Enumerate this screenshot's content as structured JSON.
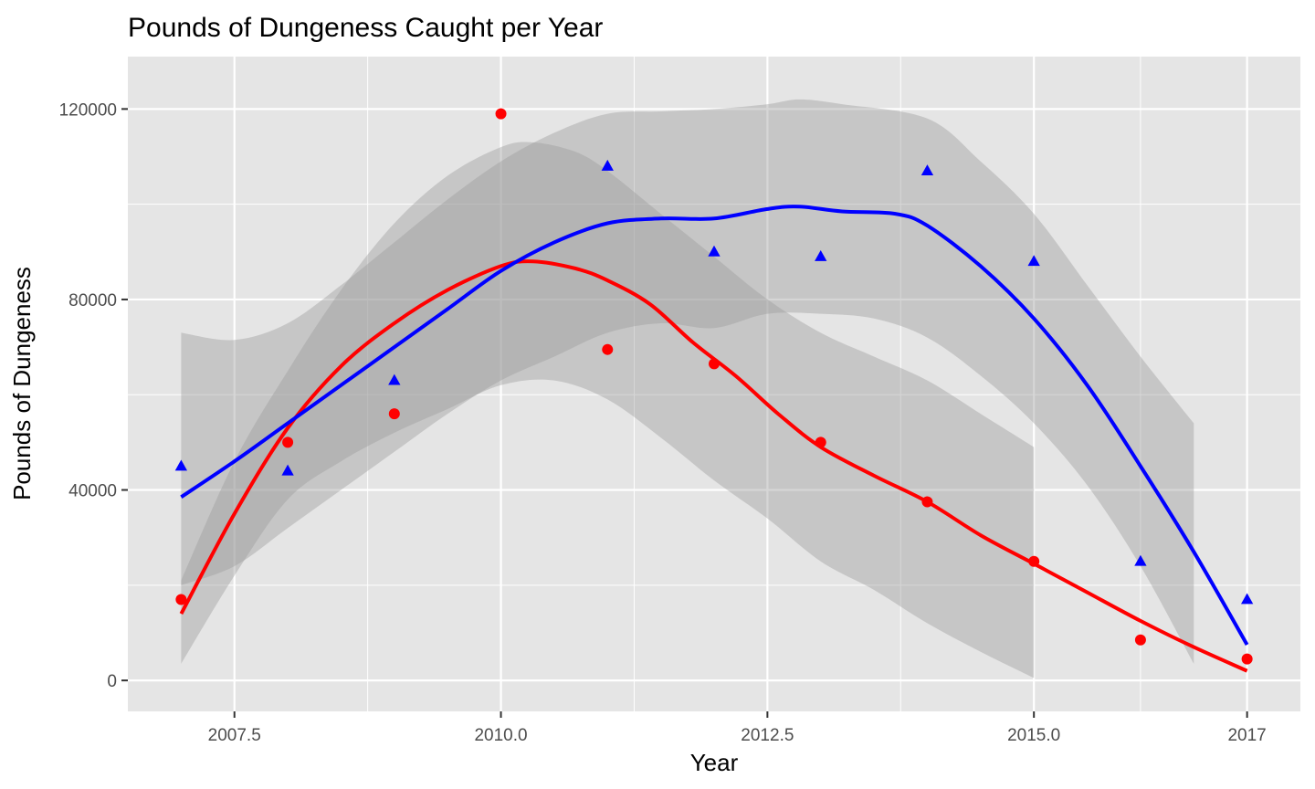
{
  "chart_data": {
    "type": "scatter",
    "title": "Pounds of Dungeness Caught per Year",
    "xlabel": "Year",
    "ylabel": "Pounds of Dungeness",
    "xlim": [
      2006.5,
      2017.5
    ],
    "ylim": [
      -6500,
      131000
    ],
    "x_ticks": [
      2007.5,
      2010.0,
      2012.5,
      2015.0,
      2017
    ],
    "x_tick_labels": [
      "2007.5",
      "2010.0",
      "2012.5",
      "2015.0",
      "2017"
    ],
    "y_ticks": [
      0,
      40000,
      80000,
      120000
    ],
    "y_tick_labels": [
      "0",
      "40000",
      "80000",
      "120000"
    ],
    "grid": true,
    "legend": "none",
    "colors": {
      "panel_bg": "#e5e5e5",
      "grid": "#ffffff",
      "ribbon": "#999999",
      "red": "#ff0000",
      "blue": "#0000ff",
      "tick": "#333333"
    },
    "series": [
      {
        "color": "#ff0000",
        "marker": "circle",
        "points": [
          {
            "x": 2007,
            "y": 17000
          },
          {
            "x": 2008,
            "y": 50000
          },
          {
            "x": 2009,
            "y": 56000
          },
          {
            "x": 2010,
            "y": 119000
          },
          {
            "x": 2011,
            "y": 69500
          },
          {
            "x": 2012,
            "y": 66500
          },
          {
            "x": 2013,
            "y": 50000
          },
          {
            "x": 2014,
            "y": 37500
          },
          {
            "x": 2015,
            "y": 25000
          },
          {
            "x": 2016,
            "y": 8500
          },
          {
            "x": 2017,
            "y": 4500
          }
        ],
        "smooth": [
          {
            "x": 2007.0,
            "y": 14000
          },
          {
            "x": 2007.5,
            "y": 35000
          },
          {
            "x": 2008.0,
            "y": 53000
          },
          {
            "x": 2008.5,
            "y": 66000
          },
          {
            "x": 2009.0,
            "y": 75000
          },
          {
            "x": 2009.5,
            "y": 82000
          },
          {
            "x": 2010.0,
            "y": 87000
          },
          {
            "x": 2010.3,
            "y": 88000
          },
          {
            "x": 2010.7,
            "y": 86500
          },
          {
            "x": 2011.0,
            "y": 84000
          },
          {
            "x": 2011.4,
            "y": 79000
          },
          {
            "x": 2011.8,
            "y": 71000
          },
          {
            "x": 2012.2,
            "y": 64000
          },
          {
            "x": 2012.6,
            "y": 56000
          },
          {
            "x": 2013.0,
            "y": 49000
          },
          {
            "x": 2013.5,
            "y": 43000
          },
          {
            "x": 2014.0,
            "y": 37500
          },
          {
            "x": 2014.5,
            "y": 30500
          },
          {
            "x": 2015.0,
            "y": 24500
          },
          {
            "x": 2015.5,
            "y": 18500
          },
          {
            "x": 2016.0,
            "y": 12500
          },
          {
            "x": 2016.5,
            "y": 7000
          },
          {
            "x": 2017.0,
            "y": 2000
          }
        ],
        "ribbon_upper": [
          {
            "x": 2007.0,
            "y": 21000
          },
          {
            "x": 2007.5,
            "y": 46000
          },
          {
            "x": 2008.0,
            "y": 65000
          },
          {
            "x": 2008.5,
            "y": 82000
          },
          {
            "x": 2009.0,
            "y": 96000
          },
          {
            "x": 2009.5,
            "y": 106000
          },
          {
            "x": 2010.0,
            "y": 112000
          },
          {
            "x": 2010.3,
            "y": 113000
          },
          {
            "x": 2010.7,
            "y": 111000
          },
          {
            "x": 2011.0,
            "y": 107000
          },
          {
            "x": 2011.5,
            "y": 98000
          },
          {
            "x": 2012.0,
            "y": 89000
          },
          {
            "x": 2012.5,
            "y": 80000
          },
          {
            "x": 2013.0,
            "y": 73000
          },
          {
            "x": 2013.5,
            "y": 68000
          },
          {
            "x": 2014.0,
            "y": 63000
          },
          {
            "x": 2014.5,
            "y": 56000
          },
          {
            "x": 2015.0,
            "y": 49000
          }
        ],
        "ribbon_lower": [
          {
            "x": 2007.0,
            "y": 3500
          },
          {
            "x": 2007.5,
            "y": 22000
          },
          {
            "x": 2008.0,
            "y": 38000
          },
          {
            "x": 2008.5,
            "y": 46000
          },
          {
            "x": 2009.0,
            "y": 52000
          },
          {
            "x": 2009.5,
            "y": 57000
          },
          {
            "x": 2010.0,
            "y": 62000
          },
          {
            "x": 2010.5,
            "y": 63000
          },
          {
            "x": 2011.0,
            "y": 59000
          },
          {
            "x": 2011.5,
            "y": 51000
          },
          {
            "x": 2012.0,
            "y": 42000
          },
          {
            "x": 2012.5,
            "y": 34000
          },
          {
            "x": 2013.0,
            "y": 25000
          },
          {
            "x": 2013.5,
            "y": 19000
          },
          {
            "x": 2014.0,
            "y": 12000
          },
          {
            "x": 2014.5,
            "y": 6000
          },
          {
            "x": 2015.0,
            "y": 500
          }
        ]
      },
      {
        "color": "#0000ff",
        "marker": "triangle",
        "points": [
          {
            "x": 2007,
            "y": 45000
          },
          {
            "x": 2008,
            "y": 44000
          },
          {
            "x": 2009,
            "y": 63000
          },
          {
            "x": 2011,
            "y": 108000
          },
          {
            "x": 2012,
            "y": 90000
          },
          {
            "x": 2013,
            "y": 89000
          },
          {
            "x": 2014,
            "y": 107000
          },
          {
            "x": 2015,
            "y": 88000
          },
          {
            "x": 2016,
            "y": 25000
          },
          {
            "x": 2017,
            "y": 17000
          }
        ],
        "smooth": [
          {
            "x": 2007.0,
            "y": 38500
          },
          {
            "x": 2007.5,
            "y": 46000
          },
          {
            "x": 2008.0,
            "y": 54000
          },
          {
            "x": 2008.5,
            "y": 62000
          },
          {
            "x": 2009.0,
            "y": 70000
          },
          {
            "x": 2009.5,
            "y": 78000
          },
          {
            "x": 2010.0,
            "y": 86000
          },
          {
            "x": 2010.5,
            "y": 92000
          },
          {
            "x": 2011.0,
            "y": 96000
          },
          {
            "x": 2011.5,
            "y": 97000
          },
          {
            "x": 2012.0,
            "y": 97000
          },
          {
            "x": 2012.5,
            "y": 99000
          },
          {
            "x": 2012.8,
            "y": 99500
          },
          {
            "x": 2013.2,
            "y": 98500
          },
          {
            "x": 2013.7,
            "y": 98000
          },
          {
            "x": 2014.0,
            "y": 95500
          },
          {
            "x": 2014.5,
            "y": 87000
          },
          {
            "x": 2015.0,
            "y": 76000
          },
          {
            "x": 2015.5,
            "y": 62000
          },
          {
            "x": 2016.0,
            "y": 45000
          },
          {
            "x": 2016.5,
            "y": 27000
          },
          {
            "x": 2017.0,
            "y": 7500
          }
        ],
        "ribbon_upper": [
          {
            "x": 2007.0,
            "y": 73000
          },
          {
            "x": 2007.5,
            "y": 71500
          },
          {
            "x": 2008.0,
            "y": 75000
          },
          {
            "x": 2008.5,
            "y": 83000
          },
          {
            "x": 2009.0,
            "y": 92000
          },
          {
            "x": 2009.5,
            "y": 101000
          },
          {
            "x": 2010.0,
            "y": 109000
          },
          {
            "x": 2010.5,
            "y": 115000
          },
          {
            "x": 2011.0,
            "y": 119000
          },
          {
            "x": 2011.5,
            "y": 119500
          },
          {
            "x": 2012.0,
            "y": 120000
          },
          {
            "x": 2012.5,
            "y": 121000
          },
          {
            "x": 2012.8,
            "y": 122000
          },
          {
            "x": 2013.2,
            "y": 121000
          },
          {
            "x": 2014.0,
            "y": 118000
          },
          {
            "x": 2014.5,
            "y": 109000
          },
          {
            "x": 2015.0,
            "y": 98000
          },
          {
            "x": 2015.5,
            "y": 83000
          },
          {
            "x": 2016.0,
            "y": 68000
          },
          {
            "x": 2016.5,
            "y": 54000
          }
        ],
        "ribbon_lower": [
          {
            "x": 2007.0,
            "y": 20000
          },
          {
            "x": 2007.5,
            "y": 24000
          },
          {
            "x": 2008.0,
            "y": 32000
          },
          {
            "x": 2008.5,
            "y": 40000
          },
          {
            "x": 2009.0,
            "y": 48000
          },
          {
            "x": 2009.5,
            "y": 56000
          },
          {
            "x": 2010.0,
            "y": 63000
          },
          {
            "x": 2010.5,
            "y": 68000
          },
          {
            "x": 2011.0,
            "y": 73000
          },
          {
            "x": 2011.5,
            "y": 75000
          },
          {
            "x": 2012.0,
            "y": 74000
          },
          {
            "x": 2012.5,
            "y": 77000
          },
          {
            "x": 2013.0,
            "y": 77000
          },
          {
            "x": 2013.5,
            "y": 76000
          },
          {
            "x": 2014.0,
            "y": 72000
          },
          {
            "x": 2014.5,
            "y": 64000
          },
          {
            "x": 2015.0,
            "y": 54000
          },
          {
            "x": 2015.5,
            "y": 41000
          },
          {
            "x": 2016.0,
            "y": 24000
          },
          {
            "x": 2016.5,
            "y": 3500
          }
        ]
      }
    ]
  }
}
